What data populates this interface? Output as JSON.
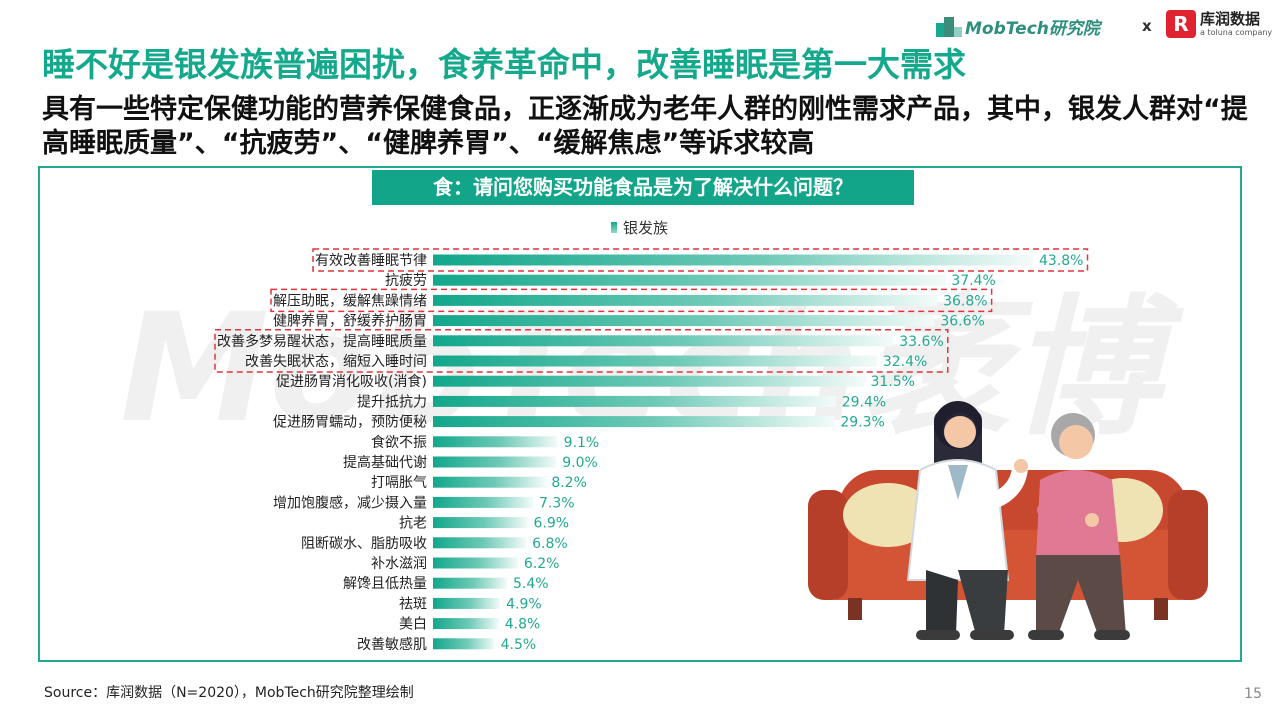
{
  "header": {
    "mobtech_logo_text": "MobTech研究院",
    "separator": "x",
    "kurun_logo_text": "库润数据",
    "kurun_logo_sub": "a toluna company"
  },
  "title": "睡不好是银发族普遍困扰，食养革命中，改善睡眠是第一大需求",
  "subtitle": "具有一些特定保健功能的营养保健食品，正逐渐成为老年人群的刚性需求产品，其中，银发人群对“提高睡眠质量”、“抗疲劳”、“健脾养胃”、“缓解焦虑”等诉求较高",
  "colors": {
    "accent": "#13a58a",
    "highlight_box": "#e0353b"
  },
  "chart_data": {
    "type": "bar",
    "orientation": "horizontal",
    "title": "食：请问您购买功能食品是为了解决什么问题？",
    "legend": [
      "银发族"
    ],
    "categories": [
      "有效改善睡眠节律",
      "抗疲劳",
      "解压助眠，缓解焦躁情绪",
      "健脾养胃，舒缓养护肠胃",
      "改善多梦易醒状态，提高睡眠质量",
      "改善失眠状态，缩短入睡时间",
      "促进肠胃消化吸收(消食)",
      "提升抵抗力",
      "促进肠胃蠕动，预防便秘",
      "食欲不振",
      "提高基础代谢",
      "打嗝胀气",
      "增加饱腹感，减少摄入量",
      "抗老",
      "阻断碳水、脂肪吸收",
      "补水滋润",
      "解馋且低热量",
      "祛斑",
      "美白",
      "改善敏感肌"
    ],
    "series": [
      {
        "name": "银发族",
        "values": [
          43.8,
          37.4,
          36.8,
          36.6,
          33.6,
          32.4,
          31.5,
          29.4,
          29.3,
          9.1,
          9.0,
          8.2,
          7.3,
          6.9,
          6.8,
          6.2,
          5.4,
          4.9,
          4.8,
          4.5
        ],
        "value_labels": [
          "43.8%",
          "37.4%",
          "36.8%",
          "36.6%",
          "33.6%",
          "32.4%",
          "31.5%",
          "29.4%",
          "29.3%",
          "9.1%",
          "9.0%",
          "8.2%",
          "7.3%",
          "6.9%",
          "6.8%",
          "6.2%",
          "5.4%",
          "4.9%",
          "4.8%",
          "4.5%"
        ]
      }
    ],
    "highlighted_categories": [
      "有效改善睡眠节律",
      "解压助眠，缓解焦躁情绪",
      "改善多梦易醒状态，提高睡眠质量",
      "改善失眠状态，缩短入睡时间"
    ],
    "xlim": [
      0,
      43.8
    ],
    "grid": false,
    "legend_position": "top-center"
  },
  "watermark": "MobTech袤博",
  "illustration": "doctor-with-elderly-patient-on-sofa",
  "footer": {
    "source": "Source：库润数据（N=2020），MobTech研究院整理绘制",
    "page": "15"
  }
}
